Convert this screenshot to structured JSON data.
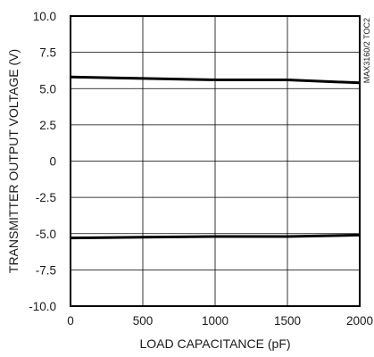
{
  "chart_data": {
    "type": "line",
    "xlabel": "LOAD CAPACITANCE (pF)",
    "ylabel": "TRANSMITTER OUTPUT VOLTAGE (V)",
    "figure_code": "MAX3160/2 TOC2",
    "xlim": [
      0,
      2000
    ],
    "ylim": [
      -10,
      10
    ],
    "x_ticks": [
      "0",
      "500",
      "1000",
      "1500",
      "2000"
    ],
    "y_ticks": [
      "10.0",
      "7.5",
      "5.0",
      "2.5",
      "0",
      "-2.5",
      "-5.0",
      "-7.5",
      "-10.0"
    ],
    "grid": true,
    "series": [
      {
        "x": [
          0,
          500,
          1000,
          1500,
          2000
        ],
        "values": [
          5.8,
          5.7,
          5.6,
          5.6,
          5.4
        ]
      },
      {
        "x": [
          0,
          500,
          1000,
          1500,
          2000
        ],
        "values": [
          -5.3,
          -5.25,
          -5.2,
          -5.2,
          -5.1
        ]
      }
    ]
  }
}
